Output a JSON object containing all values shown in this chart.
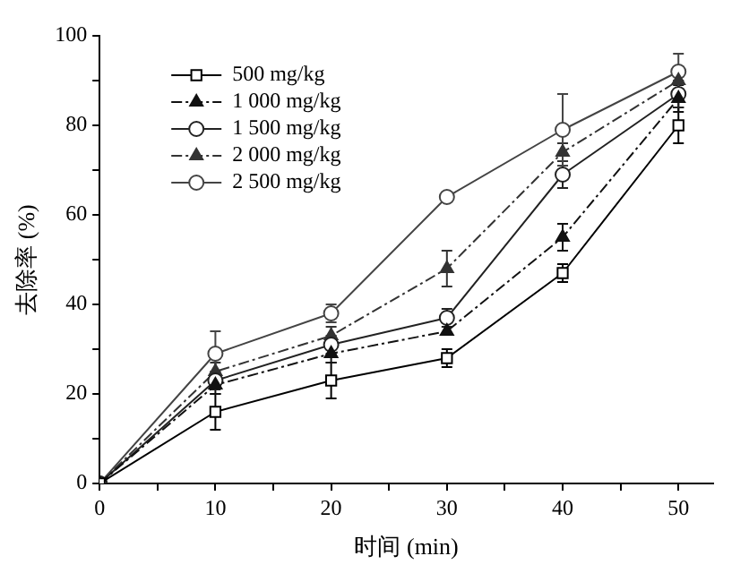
{
  "chart_data": {
    "type": "line",
    "xlabel": "时间 (min)",
    "ylabel": "去除率 (%)",
    "x": [
      0,
      10,
      20,
      30,
      40,
      50
    ],
    "xlim": [
      0,
      53
    ],
    "xticks": [
      0,
      {
        "value": 5,
        "label": null
      },
      10,
      {
        "value": 15,
        "label": null
      },
      20,
      {
        "value": 25,
        "label": null
      },
      30,
      {
        "value": 35,
        "label": null
      },
      40,
      {
        "value": 45,
        "label": null
      },
      50
    ],
    "ylim": [
      0,
      100
    ],
    "yticks": [
      0,
      {
        "value": 10,
        "label": null
      },
      20,
      {
        "value": 30,
        "label": null
      },
      40,
      {
        "value": 50,
        "label": null
      },
      60,
      {
        "value": 70,
        "label": null
      },
      80,
      {
        "value": 90,
        "label": null
      },
      100
    ],
    "grid": false,
    "legend": "top left",
    "series": [
      {
        "name": "500 mg/kg",
        "color": "#000000",
        "marker": "square",
        "line_style": "solid",
        "values": [
          0,
          16,
          23,
          28,
          47,
          80
        ],
        "errors": [
          null,
          4,
          4,
          2,
          2,
          4
        ]
      },
      {
        "name": "1 000 mg/kg",
        "color": "#111111",
        "marker": "triangle",
        "line_style": "dashed",
        "values": [
          0,
          22,
          29,
          34,
          55,
          86
        ],
        "errors": [
          null,
          2,
          2,
          null,
          3,
          3
        ]
      },
      {
        "name": "1 500 mg/kg",
        "color": "#222222",
        "marker": "circle",
        "line_style": "solid",
        "values": [
          0,
          23,
          31,
          37,
          69,
          87
        ],
        "errors": [
          null,
          2,
          2,
          2,
          3,
          3
        ]
      },
      {
        "name": "2 000 mg/kg",
        "color": "#333333",
        "marker": "triangle",
        "line_style": "dashed",
        "values": [
          0,
          25,
          33,
          48,
          74,
          90
        ],
        "errors": [
          null,
          2,
          2,
          4,
          2,
          2
        ]
      },
      {
        "name": "2 500 mg/kg",
        "color": "#444444",
        "marker": "circle",
        "line_style": "solid",
        "values": [
          0,
          29,
          38,
          64,
          79,
          92
        ],
        "errors": [
          null,
          5,
          2,
          null,
          8,
          4
        ]
      }
    ]
  }
}
